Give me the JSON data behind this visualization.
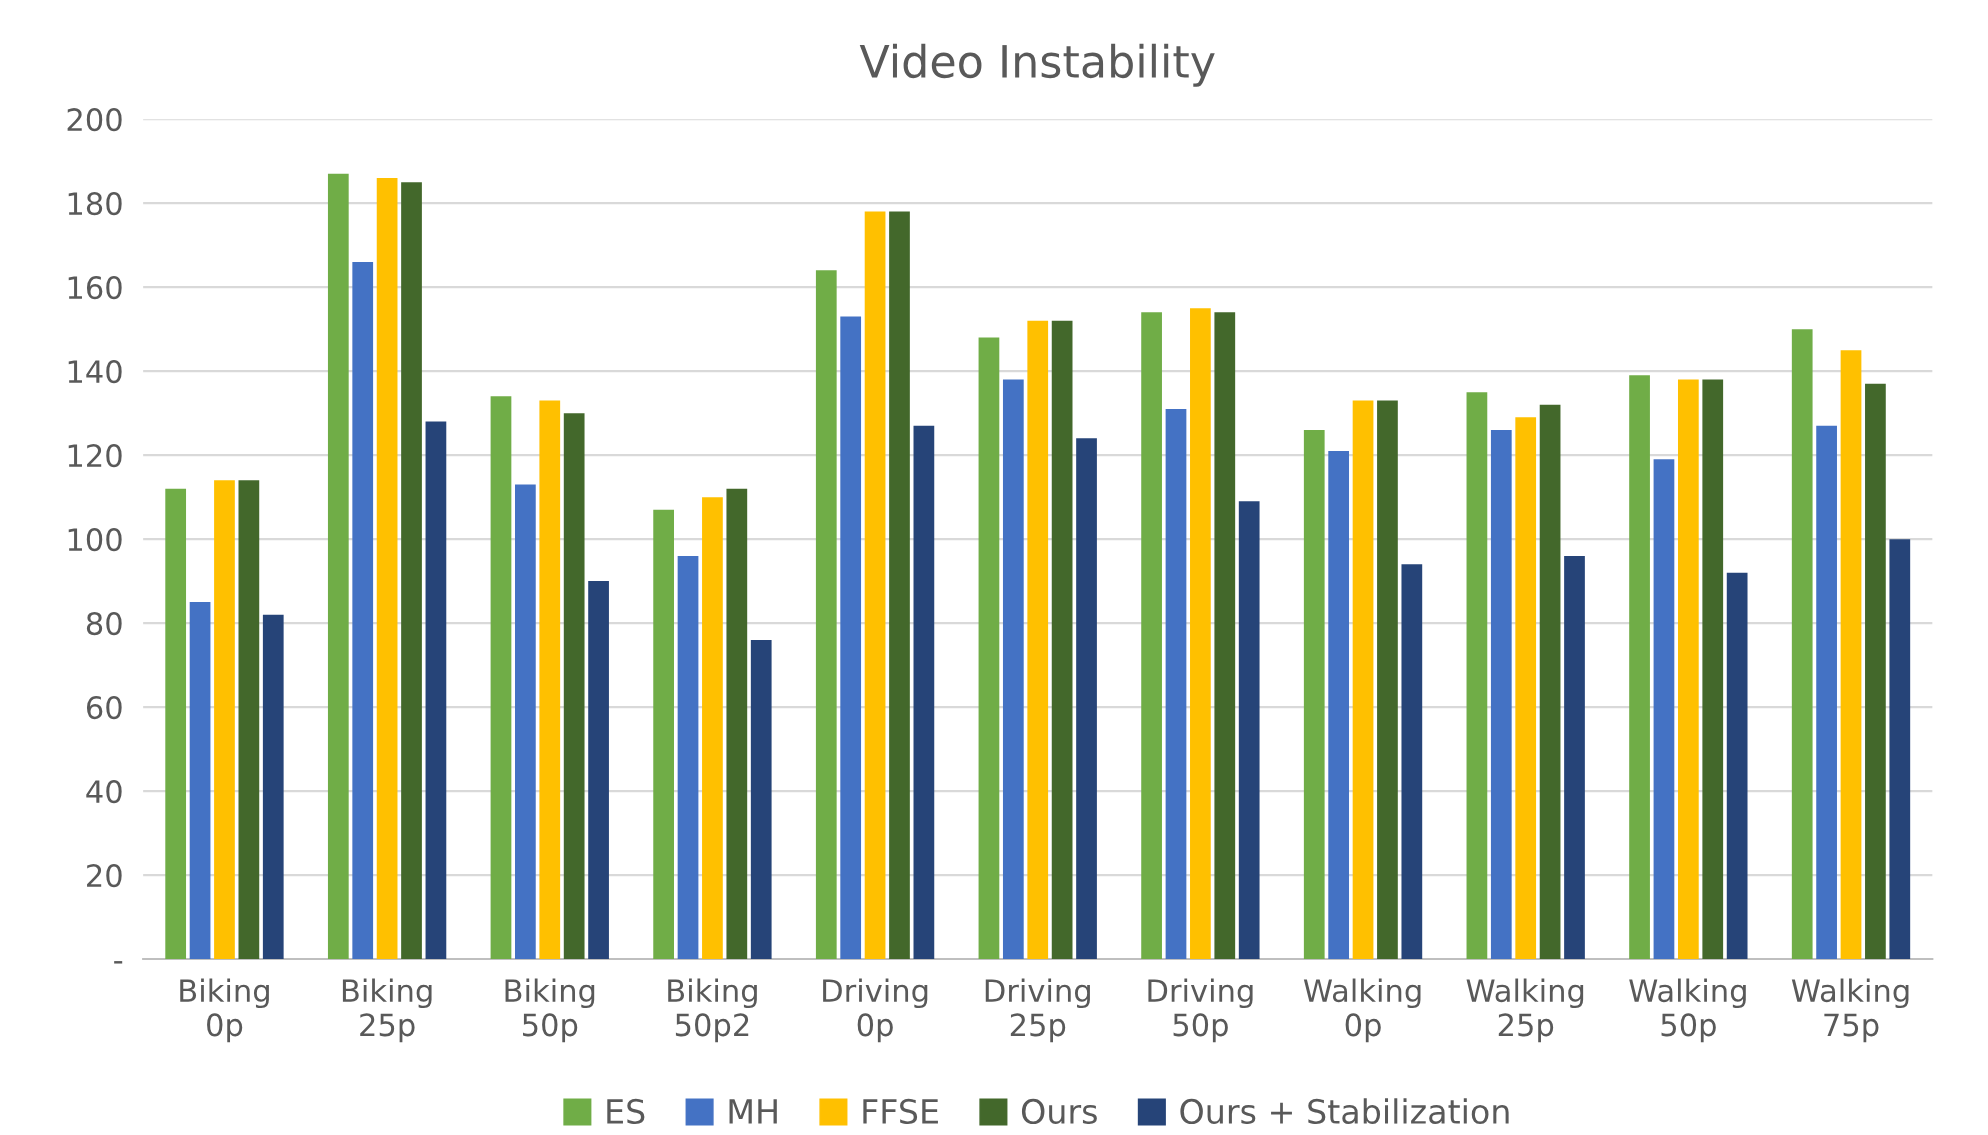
{
  "chart_data": {
    "type": "bar",
    "title": "Video Instability",
    "categories": [
      "Biking\n0p",
      "Biking\n25p",
      "Biking\n50p",
      "Biking\n50p2",
      "Driving\n0p",
      "Driving\n25p",
      "Driving\n50p",
      "Walking\n0p",
      "Walking\n25p",
      "Walking\n50p",
      "Walking\n75p"
    ],
    "series": [
      {
        "name": "ES",
        "color": "#70ad47",
        "values": [
          112,
          187,
          134,
          107,
          164,
          148,
          154,
          126,
          135,
          139,
          150
        ]
      },
      {
        "name": "MH",
        "color": "#4472c4",
        "values": [
          85,
          166,
          113,
          96,
          153,
          138,
          131,
          121,
          126,
          119,
          127
        ]
      },
      {
        "name": "FFSE",
        "color": "#ffc000",
        "values": [
          114,
          186,
          133,
          110,
          178,
          152,
          155,
          133,
          129,
          138,
          145
        ]
      },
      {
        "name": "Ours",
        "color": "#43682b",
        "values": [
          114,
          185,
          130,
          112,
          178,
          152,
          154,
          133,
          132,
          138,
          137
        ]
      },
      {
        "name": "Ours + Stabilization",
        "color": "#264478",
        "values": [
          82,
          128,
          90,
          76,
          127,
          124,
          109,
          94,
          96,
          92,
          100
        ]
      }
    ],
    "ylim": [
      0,
      200
    ],
    "yticks": [
      {
        "value": 0,
        "label": "-"
      },
      20,
      40,
      60,
      80,
      100,
      120,
      140,
      160,
      180,
      200
    ],
    "grid": "y",
    "legend": "bottom"
  }
}
